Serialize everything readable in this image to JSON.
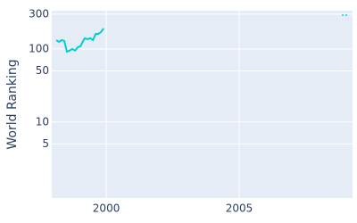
{
  "chart_data": {
    "type": "line",
    "y_label": "World Ranking",
    "x": [
      1998.12,
      1998.22,
      1998.32,
      1998.42,
      1998.52,
      1998.62,
      1998.72,
      1998.83,
      1998.93,
      1999.03,
      1999.13,
      1999.19,
      1999.3,
      1999.4,
      1999.5,
      1999.6,
      1999.7,
      1999.8,
      1999.9
    ],
    "series": [
      {
        "color": "#00ced1",
        "values": [
          132,
          125,
          132,
          129,
          92,
          95,
          100,
          95,
          106,
          109,
          129,
          140,
          136,
          140,
          132,
          161,
          161,
          170,
          191
        ]
      }
    ],
    "xlim": [
      1997.95,
      2009.26
    ],
    "xticks": [
      2000,
      2005
    ],
    "ylim": [
      0.91,
      334
    ],
    "yticks": [
      5,
      10,
      50,
      100,
      300
    ],
    "log_y": true,
    "grid": true,
    "legend": "top-right"
  }
}
